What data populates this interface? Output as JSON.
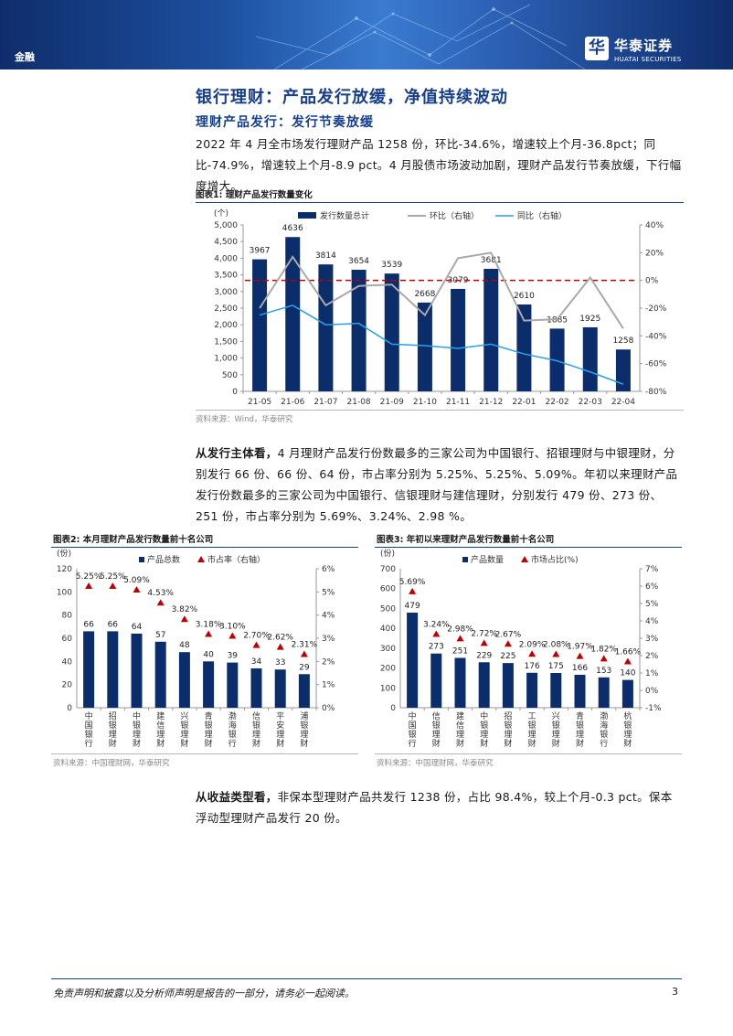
{
  "header": {
    "section": "金融",
    "logo_mark": "华",
    "logo_name": "华泰证券",
    "logo_en": "HUATAI SECURITIES"
  },
  "colors": {
    "navy": "#173f8a",
    "bar": "#0c2d6b",
    "gray_line": "#a9a9a9",
    "blue_line": "#2aa0e6",
    "red": "#c00000"
  },
  "title": "银行理财：产品发行放缓，净值持续波动",
  "subtitle": "理财产品发行：发行节奏放缓",
  "para1": "2022 年 4 月全市场发行理财产品 1258 份，环比-34.6%，增速较上个月-36.8pct；同比-74.9%，增速较上个月-8.9 pct。4 月股债市场波动加剧，理财产品发行节奏放缓，下行幅度增大。",
  "fig1_title": "图表1:   理财产品发行数量变化",
  "fig1_source": "资料来源：Wind，华泰研究",
  "para2_lead": "从发行主体看，",
  "para2": "4 月理财产品发行份数最多的三家公司为中国银行、招银理财与中银理财，分别发行 66 份、66 份、64 份，市占率分别为 5.25%、5.25%、5.09%。年初以来理财产品发行份数最多的三家公司为中国银行、信银理财与建信理财，分别发行 479 份、273 份、251 份，市占率分别为 5.69%、3.24%、2.98 %。",
  "fig2_title": "图表2:   本月理财产品发行数量前十名公司",
  "fig2_source": "资料来源：中国理财网，华泰研究",
  "fig3_title": "图表3:   年初以来理财产品发行数量前十名公司",
  "fig3_source": "资料来源：中国理财网，华泰研究",
  "para3_lead": "从收益类型看，",
  "para3": "非保本型理财产品共发行 1238 份，占比 98.4%，较上个月-0.3 pct。保本浮动型理财产品发行 20 份。",
  "footer": {
    "disclaimer": "免责声明和披露以及分析师声明是报告的一部分，请务必一起阅读。",
    "page": "3"
  },
  "chart_data": [
    {
      "type": "bar",
      "title": "理财产品发行数量变化",
      "ylabel": "(个)",
      "categories": [
        "21-05",
        "21-06",
        "21-07",
        "21-08",
        "21-09",
        "21-10",
        "21-11",
        "21-12",
        "22-01",
        "22-02",
        "22-03",
        "22-04"
      ],
      "series": [
        {
          "name": "发行数量总计",
          "type": "bar",
          "axis": "left",
          "values": [
            3967,
            4636,
            3814,
            3654,
            3539,
            2668,
            3079,
            3681,
            2610,
            1885,
            1925,
            1258
          ]
        },
        {
          "name": "环比（右轴）",
          "type": "line",
          "axis": "right",
          "values": [
            -20,
            17,
            -18,
            -4,
            -3,
            -25,
            16,
            20,
            -29,
            -28,
            2,
            -34.6
          ]
        },
        {
          "name": "同比（右轴）",
          "type": "line",
          "axis": "right",
          "values": [
            -25,
            -18,
            -32,
            -31,
            -46,
            -47,
            -49,
            -46,
            -53,
            -58,
            -66,
            -74.9
          ]
        }
      ],
      "ylim": [
        0,
        5000
      ],
      "yticks": [
        0,
        500,
        1000,
        1500,
        2000,
        2500,
        3000,
        3500,
        4000,
        4500,
        5000
      ],
      "ytick_labels": [
        "0",
        "500",
        "1,000",
        "1,500",
        "2,000",
        "2,500",
        "3,000",
        "3,500",
        "4,000",
        "4,500",
        "5,000"
      ],
      "y2lim": [
        -80,
        40
      ],
      "y2ticks": [
        -80,
        -60,
        -40,
        -20,
        0,
        20,
        40
      ],
      "y2tick_labels": [
        "-80%",
        "-60%",
        "-40%",
        "-20%",
        "0%",
        "20%",
        "40%"
      ],
      "reference_line": 0
    },
    {
      "type": "bar",
      "title": "本月理财产品发行数量前十名公司",
      "ylabel": "(份)",
      "categories": [
        "中国银行",
        "招银理财",
        "中银理财",
        "建信理财",
        "兴银理财",
        "青银理财",
        "渤海银行",
        "信银理财",
        "平安理财",
        "浦银理财"
      ],
      "series": [
        {
          "name": "产品总数",
          "type": "bar",
          "axis": "left",
          "values": [
            66,
            66,
            64,
            57,
            48,
            40,
            39,
            34,
            33,
            29
          ]
        },
        {
          "name": "市占率（右轴）",
          "type": "marker",
          "axis": "right",
          "values": [
            5.25,
            5.25,
            5.09,
            4.53,
            3.82,
            3.18,
            3.1,
            2.7,
            2.62,
            2.31
          ],
          "labels": [
            "5.25%",
            "5.25%",
            "5.09%",
            "4.53%",
            "3.82%",
            "3.18%",
            "3.10%",
            "2.70%",
            "2.62%",
            "2.31%"
          ]
        }
      ],
      "ylim": [
        0,
        120
      ],
      "yticks": [
        0,
        20,
        40,
        60,
        80,
        100,
        120
      ],
      "ytick_labels": [
        "0",
        "20",
        "40",
        "60",
        "80",
        "100",
        "120"
      ],
      "y2lim": [
        0,
        6
      ],
      "y2ticks": [
        0,
        1,
        2,
        3,
        4,
        5,
        6
      ],
      "y2tick_labels": [
        "0%",
        "1%",
        "2%",
        "3%",
        "4%",
        "5%",
        "6%"
      ]
    },
    {
      "type": "bar",
      "title": "年初以来理财产品发行数量前十名公司",
      "ylabel": "(份)",
      "categories": [
        "中国银行",
        "信银理财",
        "建信理财",
        "中银理财",
        "招银理财",
        "工银理财",
        "兴银理财",
        "青银理财",
        "渤海银行",
        "杭银理财"
      ],
      "series": [
        {
          "name": "产品数量",
          "type": "bar",
          "axis": "left",
          "values": [
            479,
            273,
            251,
            229,
            225,
            176,
            175,
            166,
            153,
            140
          ]
        },
        {
          "name": "市场占比(%)",
          "type": "marker",
          "axis": "right",
          "values": [
            5.69,
            3.24,
            2.98,
            2.72,
            2.67,
            2.09,
            2.08,
            1.97,
            1.82,
            1.66
          ],
          "labels": [
            "5.69%",
            "3.24%",
            "2.98%",
            "2.72%",
            "2.67%",
            "2.09%",
            "2.08%",
            "1.97%",
            "1.82%",
            "1.66%"
          ]
        }
      ],
      "ylim": [
        0,
        700
      ],
      "yticks": [
        0,
        100,
        200,
        300,
        400,
        500,
        600,
        700
      ],
      "ytick_labels": [
        "0",
        "100",
        "200",
        "300",
        "400",
        "500",
        "600",
        "700"
      ],
      "y2lim": [
        -1,
        7
      ],
      "y2ticks": [
        -1,
        0,
        1,
        2,
        3,
        4,
        5,
        6,
        7
      ],
      "y2tick_labels": [
        "-1%",
        "0%",
        "1%",
        "2%",
        "3%",
        "4%",
        "5%",
        "6%",
        "7%"
      ]
    }
  ]
}
